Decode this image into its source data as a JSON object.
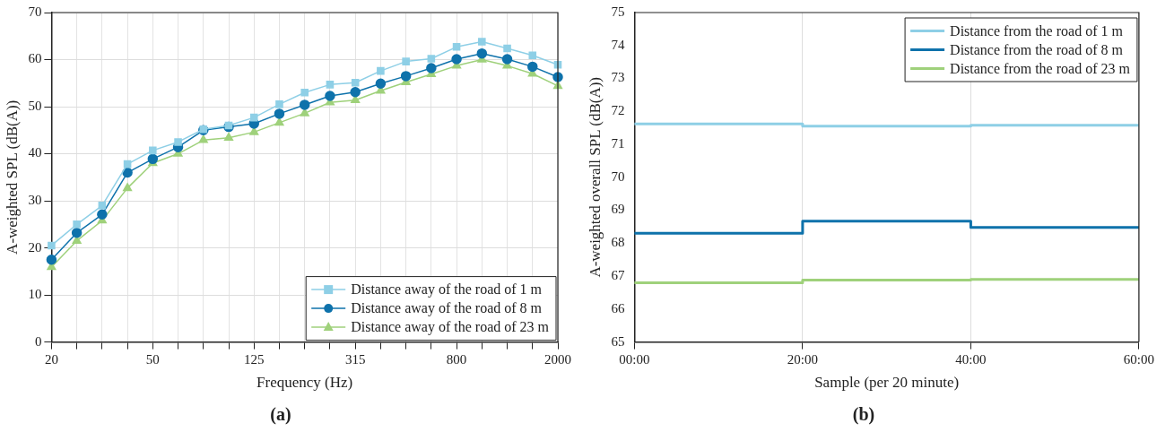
{
  "chart_data": [
    {
      "type": "line",
      "title": "(a)",
      "xlabel": "Frequency (Hz)",
      "ylabel": "A-weighted SPL (dB(A))",
      "categories": [
        "20",
        null,
        null,
        null,
        "50",
        null,
        null,
        null,
        "125",
        null,
        null,
        null,
        "315",
        null,
        null,
        null,
        "800",
        null,
        null,
        null,
        "2000"
      ],
      "series": [
        {
          "name": "Distance away of the road of 1 m",
          "color": "#8ecfe6",
          "marker": "square",
          "values": [
            20.5,
            25,
            29,
            37.8,
            40.7,
            42.5,
            45.2,
            46,
            47.7,
            50.5,
            53,
            54.7,
            55.1,
            57.6,
            59.6,
            60.2,
            62.7,
            63.8,
            62.4,
            60.9,
            58.9
          ]
        },
        {
          "name": "Distance away of the road of 8 m",
          "color": "#0e72ab",
          "marker": "circle",
          "values": [
            17.5,
            23.2,
            27.1,
            36,
            38.9,
            41.4,
            45,
            45.7,
            46.4,
            48.5,
            50.4,
            52.3,
            53.1,
            54.9,
            56.5,
            58.2,
            60.1,
            61.3,
            60.1,
            58.5,
            56.3
          ]
        },
        {
          "name": "Distance away of the road of 23 m",
          "color": "#9fd17b",
          "marker": "triangle",
          "values": [
            15.9,
            21.5,
            25.8,
            32.7,
            38,
            40,
            42.9,
            43.4,
            44.6,
            46.6,
            48.6,
            50.9,
            51.4,
            53.4,
            55.2,
            56.9,
            58.7,
            60,
            58.7,
            57,
            54.4
          ]
        }
      ],
      "ylim": [
        0,
        70
      ],
      "yticks": [
        0,
        10,
        20,
        30,
        40,
        50,
        60,
        70
      ],
      "grid": true,
      "legend": "bottom right"
    },
    {
      "type": "step",
      "title": "(b)",
      "xlabel": "Sample (per 20 minute)",
      "ylabel": "A-weighted overall SPL (dB(A))",
      "x": [
        0,
        20,
        40,
        60
      ],
      "series": [
        {
          "name": "Distance from the road of 1 m",
          "color": "#8ecfe6",
          "values": [
            71.62,
            71.55,
            71.58,
            71.58
          ]
        },
        {
          "name": "Distance from the road of 8 m",
          "color": "#0e72ab",
          "values": [
            68.3,
            68.67,
            68.48,
            68.48
          ]
        },
        {
          "name": "Distance from the road of 23 m",
          "color": "#9fd17b",
          "values": [
            66.8,
            66.88,
            66.9,
            66.9
          ]
        }
      ],
      "xlim": [
        0,
        60
      ],
      "xticks": [
        {
          "value": 0,
          "label": "00:00"
        },
        {
          "value": 20,
          "label": "20:00"
        },
        {
          "value": 40,
          "label": "40:00"
        },
        {
          "value": 60,
          "label": "60:00"
        }
      ],
      "ylim": [
        65,
        75
      ],
      "yticks": [
        65,
        66,
        67,
        68,
        69,
        70,
        71,
        72,
        73,
        74,
        75
      ],
      "grid": "x",
      "legend": "top right"
    }
  ]
}
